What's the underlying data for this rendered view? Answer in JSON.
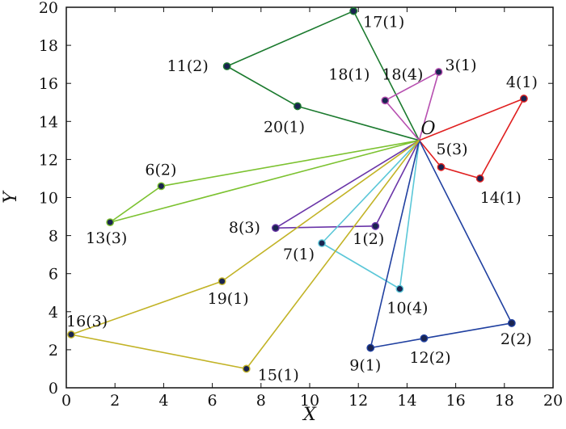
{
  "chart_data": {
    "type": "scatter",
    "xlabel": "X",
    "ylabel": "Y",
    "xlim": [
      0,
      20
    ],
    "ylim": [
      0,
      20
    ],
    "xticks": [
      0,
      2,
      4,
      6,
      8,
      10,
      12,
      14,
      16,
      18,
      20
    ],
    "yticks": [
      0,
      2,
      4,
      6,
      8,
      10,
      12,
      14,
      16,
      18,
      20
    ],
    "origin": {
      "label": "O",
      "x": 14.5,
      "y": 13.0
    },
    "points": [
      {
        "id": "1",
        "label": "1(2)",
        "x": 12.7,
        "y": 8.5
      },
      {
        "id": "2",
        "label": "2(2)",
        "x": 18.3,
        "y": 3.4
      },
      {
        "id": "3",
        "label": "3(1)",
        "x": 15.3,
        "y": 16.6
      },
      {
        "id": "4",
        "label": "4(1)",
        "x": 18.8,
        "y": 15.2
      },
      {
        "id": "5",
        "label": "5(3)",
        "x": 15.4,
        "y": 11.6
      },
      {
        "id": "6",
        "label": "6(2)",
        "x": 3.9,
        "y": 10.6
      },
      {
        "id": "7",
        "label": "7(1)",
        "x": 10.5,
        "y": 7.6
      },
      {
        "id": "8",
        "label": "8(3)",
        "x": 8.6,
        "y": 8.4
      },
      {
        "id": "9",
        "label": "9(1)",
        "x": 12.5,
        "y": 2.1
      },
      {
        "id": "10",
        "label": "10(4)",
        "x": 13.7,
        "y": 5.2
      },
      {
        "id": "11",
        "label": "11(2)",
        "x": 6.6,
        "y": 16.9
      },
      {
        "id": "12",
        "label": "12(2)",
        "x": 14.7,
        "y": 2.6
      },
      {
        "id": "13",
        "label": "13(3)",
        "x": 1.8,
        "y": 8.7
      },
      {
        "id": "14",
        "label": "14(1)",
        "x": 17.0,
        "y": 11.0
      },
      {
        "id": "15",
        "label": "15(1)",
        "x": 7.4,
        "y": 1.0
      },
      {
        "id": "16",
        "label": "16(3)",
        "x": 0.2,
        "y": 2.8
      },
      {
        "id": "17",
        "label": "17(1)",
        "x": 11.8,
        "y": 19.8
      },
      {
        "id": "18",
        "label": "18(4)",
        "x": 13.1,
        "y": 15.1
      },
      {
        "id": "19",
        "label": "19(1)",
        "x": 6.4,
        "y": 5.6
      },
      {
        "id": "20",
        "label": "20(1)",
        "x": 9.5,
        "y": 14.8
      }
    ],
    "extra_labels": [
      {
        "text": "18(1)",
        "near_point": "18"
      }
    ],
    "routes": [
      {
        "color": "#1b7a2e",
        "sequence": [
          "O",
          "17",
          "11",
          "20",
          "O"
        ]
      },
      {
        "color": "#b74fb0",
        "sequence": [
          "O",
          "18",
          "3",
          "O"
        ]
      },
      {
        "color": "#e02020",
        "sequence": [
          "O",
          "4",
          "14",
          "5",
          "O"
        ]
      },
      {
        "color": "#7cc230",
        "sequence": [
          "O",
          "6",
          "13",
          "O"
        ]
      },
      {
        "color": "#6a35a8",
        "sequence": [
          "O",
          "8",
          "1",
          "O"
        ]
      },
      {
        "color": "#5bc7d8",
        "sequence": [
          "O",
          "7",
          "10",
          "O"
        ]
      },
      {
        "color": "#2040a0",
        "sequence": [
          "O",
          "2",
          "12",
          "9",
          "O"
        ]
      },
      {
        "color": "#c2b326",
        "sequence": [
          "O",
          "19",
          "16",
          "15",
          "O"
        ]
      }
    ]
  }
}
